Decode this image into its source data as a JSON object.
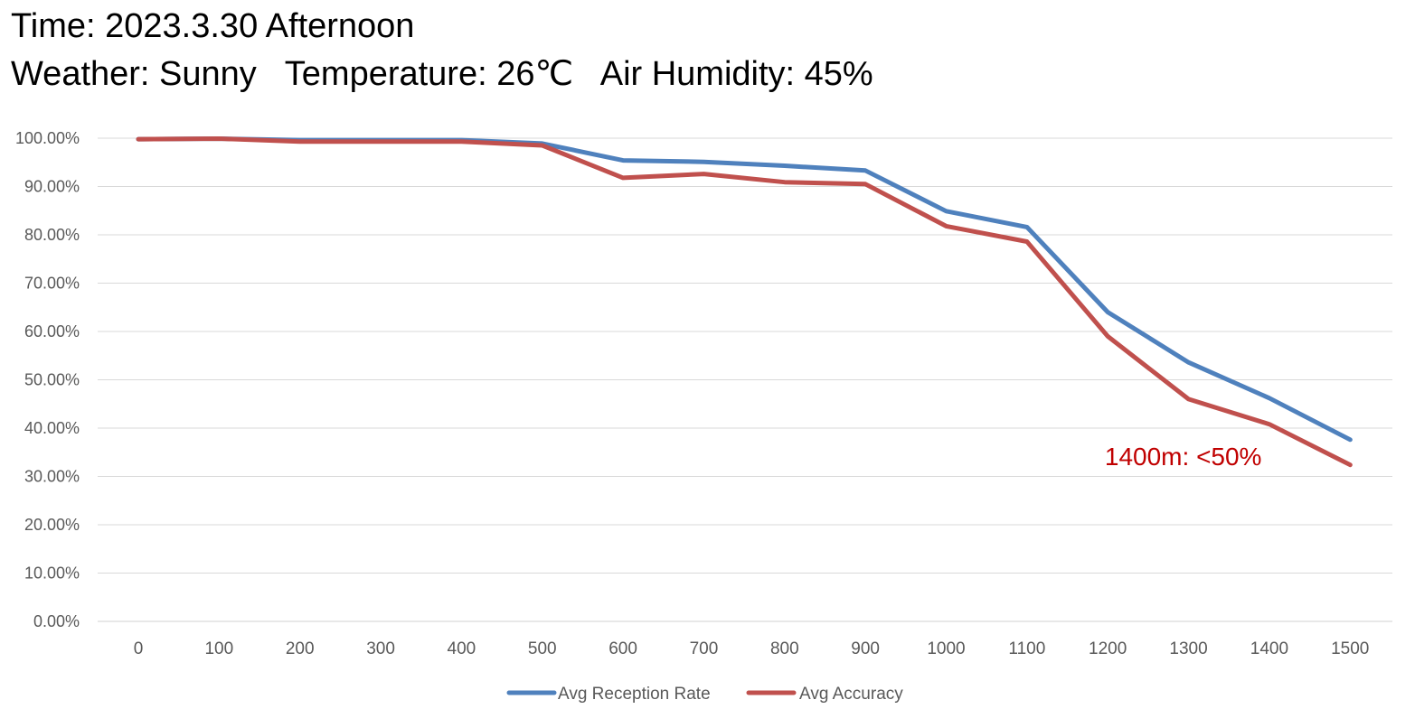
{
  "header": {
    "line1": "Time: 2023.3.30 Afternoon",
    "line2": "Weather: Sunny   Temperature: 26℃   Air Humidity: 45%"
  },
  "colors": {
    "reception": "#4F81BD",
    "accuracy": "#C0504D",
    "annotation": "#C00000",
    "grid": "#D9D9D9",
    "tick_text": "#595959"
  },
  "chart_data": {
    "type": "line",
    "title": "",
    "xlabel": "",
    "ylabel": "",
    "ylim": [
      0,
      100
    ],
    "y_tick_labels": [
      "0.00%",
      "10.00%",
      "20.00%",
      "30.00%",
      "40.00%",
      "50.00%",
      "60.00%",
      "70.00%",
      "80.00%",
      "90.00%",
      "100.00%"
    ],
    "categories": [
      "0",
      "100",
      "200",
      "300",
      "400",
      "500",
      "600",
      "700",
      "800",
      "900",
      "1000",
      "1100",
      "1200",
      "1300",
      "1400",
      "1500"
    ],
    "series": [
      {
        "name": "Avg Reception Rate",
        "color": "#4F81BD",
        "values": [
          99.8,
          99.9,
          99.6,
          99.6,
          99.6,
          98.9,
          95.4,
          95.1,
          94.3,
          93.3,
          84.9,
          81.6,
          64.0,
          53.6,
          46.2,
          37.6
        ]
      },
      {
        "name": "Avg Accuracy",
        "color": "#C0504D",
        "values": [
          99.8,
          99.9,
          99.3,
          99.3,
          99.3,
          98.5,
          91.8,
          92.6,
          90.9,
          90.5,
          81.8,
          78.6,
          59.0,
          46.0,
          40.8,
          32.4
        ]
      }
    ],
    "grid": true,
    "legend_position": "bottom-center",
    "annotations": [
      {
        "text": "1400m: <50%",
        "x": "1400",
        "color": "#C00000"
      }
    ]
  }
}
